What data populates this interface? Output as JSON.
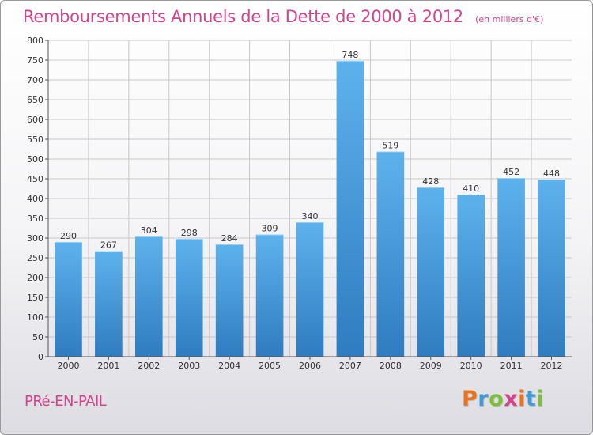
{
  "header": {
    "title": "Remboursements Annuels de la Dette de 2000 à 2012",
    "unit": "(en milliers d'€)"
  },
  "footer": {
    "commune": "PRé-EN-PAIL",
    "logo_text": "Proxiti",
    "logo_colors": [
      "#e8741f",
      "#3f9ad6",
      "#7bbf3a",
      "#d4438b",
      "#e8741f",
      "#3f9ad6",
      "#7bbf3a"
    ]
  },
  "colors": {
    "title": "#d4438b",
    "bar_top": "#5db2ec",
    "bar_bottom": "#2f7cc0",
    "grid": "#c8c8c8",
    "axis": "#555555"
  },
  "chart_data": {
    "type": "bar",
    "title": "Remboursements Annuels de la Dette de 2000 à 2012",
    "xlabel": "",
    "ylabel": "",
    "categories": [
      "2000",
      "2001",
      "2002",
      "2003",
      "2004",
      "2005",
      "2006",
      "2007",
      "2008",
      "2009",
      "2010",
      "2011",
      "2012"
    ],
    "values": [
      290,
      267,
      304,
      298,
      284,
      309,
      340,
      748,
      519,
      428,
      410,
      452,
      448
    ],
    "ylim": [
      0,
      800
    ],
    "ytick_step": 50,
    "grid": true,
    "show_value_labels": true
  }
}
